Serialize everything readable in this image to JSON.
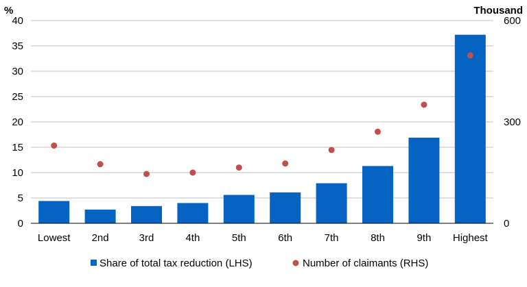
{
  "chart_data": {
    "type": "bar",
    "categories": [
      "Lowest",
      "2nd",
      "3rd",
      "4th",
      "5th",
      "6th",
      "7th",
      "8th",
      "9th",
      "Highest"
    ],
    "series": [
      {
        "name": "Share of total tax reduction (LHS)",
        "chart_type": "bar",
        "axis": "left",
        "color": "#0563C1",
        "values": [
          4.4,
          2.7,
          3.4,
          4.0,
          5.6,
          6.1,
          7.9,
          11.3,
          16.9,
          37.2
        ]
      },
      {
        "name": "Number of claimants (RHS)",
        "chart_type": "scatter",
        "axis": "right",
        "color": "#C0504D",
        "values": [
          230,
          175,
          146,
          150,
          165,
          177,
          217,
          271,
          351,
          497
        ]
      }
    ],
    "left_axis": {
      "unit_label": "%",
      "ylim": [
        0,
        40
      ],
      "ticks": [
        "0",
        "5",
        "10",
        "15",
        "20",
        "25",
        "30",
        "35",
        "40"
      ]
    },
    "right_axis": {
      "unit_label": "Thousand",
      "ylim": [
        0,
        600
      ],
      "ticks": [
        "0",
        "300",
        "600"
      ]
    },
    "grid": true,
    "legend_position": "bottom"
  }
}
